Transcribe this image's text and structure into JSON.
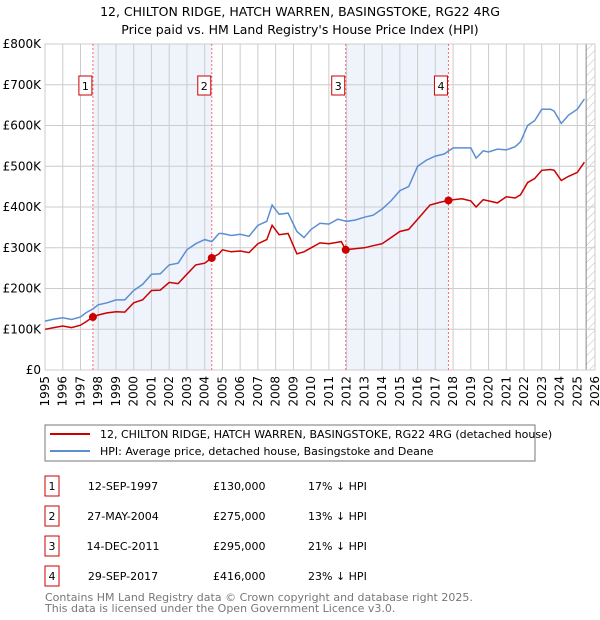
{
  "title": "12, CHILTON RIDGE, HATCH WARREN, BASINGSTOKE, RG22 4RG",
  "subtitle": "Price paid vs. HM Land Registry's House Price Index (HPI)",
  "colors": {
    "price": "#cc0000",
    "hpi": "#5b8fd1",
    "band": "#eef3fc",
    "grid": "#cccccc",
    "marker_line": "#ff6666"
  },
  "chart_data": {
    "type": "line",
    "xlim": [
      1995,
      2026
    ],
    "ylim": [
      0,
      800000
    ],
    "grid": true,
    "yticks": [
      {
        "v": 0,
        "label": "£0"
      },
      {
        "v": 100000,
        "label": "£100K"
      },
      {
        "v": 200000,
        "label": "£200K"
      },
      {
        "v": 300000,
        "label": "£300K"
      },
      {
        "v": 400000,
        "label": "£400K"
      },
      {
        "v": 500000,
        "label": "£500K"
      },
      {
        "v": 600000,
        "label": "£600K"
      },
      {
        "v": 700000,
        "label": "£700K"
      },
      {
        "v": 800000,
        "label": "£800K"
      }
    ],
    "xticks": [
      "1995",
      "1996",
      "1997",
      "1998",
      "1999",
      "2000",
      "2001",
      "2002",
      "2003",
      "2004",
      "2005",
      "2006",
      "2007",
      "2008",
      "2009",
      "2010",
      "2011",
      "2012",
      "2013",
      "2014",
      "2015",
      "2016",
      "2017",
      "2018",
      "2019",
      "2020",
      "2021",
      "2022",
      "2023",
      "2024",
      "2025",
      "2026"
    ],
    "shaded_ranges": [
      [
        1997.7,
        2004.4
      ],
      [
        2011.95,
        2017.74
      ]
    ],
    "forecast_from": 2025.5,
    "series": [
      {
        "name": "12, CHILTON RIDGE, HATCH WARREN, BASINGSTOKE, RG22 4RG (detached house)",
        "key": "price",
        "x": [
          1995,
          1995.5,
          1996,
          1996.5,
          1997,
          1997.3,
          1997.7,
          1998,
          1998.5,
          1999,
          1999.5,
          2000,
          2000.5,
          2001,
          2001.5,
          2002,
          2002.5,
          2003,
          2003.5,
          2004,
          2004.4,
          2004.8,
          2005,
          2005.5,
          2006,
          2006.5,
          2007,
          2007.5,
          2007.8,
          2008.2,
          2008.7,
          2009.2,
          2009.6,
          2010,
          2010.5,
          2011,
          2011.7,
          2011.95,
          2012.5,
          2013,
          2013.5,
          2014,
          2014.5,
          2015,
          2015.5,
          2016,
          2016.7,
          2017.3,
          2017.74,
          2018,
          2018.5,
          2019,
          2019.3,
          2019.7,
          2020,
          2020.5,
          2021,
          2021.5,
          2021.8,
          2022.2,
          2022.6,
          2023,
          2023.5,
          2023.7,
          2024.1,
          2024.5,
          2025,
          2025.4
        ],
        "y": [
          100000,
          104000,
          108000,
          104000,
          110000,
          118000,
          130000,
          135000,
          140000,
          143000,
          142000,
          165000,
          172000,
          195000,
          196000,
          215000,
          212000,
          235000,
          258000,
          262000,
          275000,
          285000,
          295000,
          290000,
          292000,
          288000,
          310000,
          320000,
          355000,
          332000,
          335000,
          285000,
          290000,
          300000,
          312000,
          310000,
          315000,
          295000,
          298000,
          300000,
          305000,
          310000,
          325000,
          340000,
          345000,
          370000,
          405000,
          412000,
          416000,
          418000,
          420000,
          415000,
          400000,
          418000,
          415000,
          410000,
          425000,
          422000,
          430000,
          460000,
          470000,
          490000,
          492000,
          490000,
          465000,
          475000,
          485000,
          510000
        ]
      },
      {
        "name": "HPI: Average price, detached house, Basingstoke and Deane",
        "key": "hpi",
        "x": [
          1995,
          1995.5,
          1996,
          1996.5,
          1997,
          1997.3,
          1997.7,
          1998,
          1998.5,
          1999,
          1999.5,
          2000,
          2000.5,
          2001,
          2001.5,
          2002,
          2002.5,
          2003,
          2003.5,
          2004,
          2004.4,
          2004.8,
          2005,
          2005.5,
          2006,
          2006.5,
          2007,
          2007.5,
          2007.8,
          2008.2,
          2008.7,
          2009.2,
          2009.6,
          2010,
          2010.5,
          2011,
          2011.5,
          2012,
          2012.5,
          2013,
          2013.5,
          2014,
          2014.5,
          2015,
          2015.5,
          2016,
          2016.5,
          2017,
          2017.5,
          2018,
          2018.5,
          2019,
          2019.3,
          2019.7,
          2020,
          2020.5,
          2021,
          2021.5,
          2021.8,
          2022.2,
          2022.6,
          2023,
          2023.5,
          2023.7,
          2024.1,
          2024.5,
          2025,
          2025.4
        ],
        "y": [
          120000,
          125000,
          128000,
          124000,
          130000,
          140000,
          150000,
          160000,
          165000,
          172000,
          172000,
          195000,
          210000,
          235000,
          236000,
          258000,
          262000,
          295000,
          310000,
          320000,
          315000,
          335000,
          335000,
          330000,
          333000,
          328000,
          355000,
          365000,
          405000,
          382000,
          385000,
          340000,
          325000,
          345000,
          360000,
          358000,
          370000,
          365000,
          368000,
          375000,
          380000,
          395000,
          415000,
          440000,
          450000,
          500000,
          515000,
          525000,
          530000,
          545000,
          545000,
          545000,
          520000,
          538000,
          535000,
          542000,
          540000,
          548000,
          560000,
          600000,
          612000,
          640000,
          640000,
          635000,
          605000,
          625000,
          640000,
          665000
        ]
      }
    ],
    "sales": [
      {
        "num": "1",
        "x": 1997.7,
        "y": 130000
      },
      {
        "num": "2",
        "x": 2004.4,
        "y": 275000
      },
      {
        "num": "3",
        "x": 2011.95,
        "y": 295000
      },
      {
        "num": "4",
        "x": 2017.74,
        "y": 416000
      }
    ]
  },
  "legend": [
    {
      "label": "12, CHILTON RIDGE, HATCH WARREN, BASINGSTOKE, RG22 4RG (detached house)"
    },
    {
      "label": "HPI: Average price, detached house, Basingstoke and Deane"
    }
  ],
  "table": [
    {
      "num": "1",
      "date": "12-SEP-1997",
      "price": "£130,000",
      "hpi": "17% ↓ HPI"
    },
    {
      "num": "2",
      "date": "27-MAY-2004",
      "price": "£275,000",
      "hpi": "13% ↓ HPI"
    },
    {
      "num": "3",
      "date": "14-DEC-2011",
      "price": "£295,000",
      "hpi": "21% ↓ HPI"
    },
    {
      "num": "4",
      "date": "29-SEP-2017",
      "price": "£416,000",
      "hpi": "23% ↓ HPI"
    }
  ],
  "footer": [
    "Contains HM Land Registry data © Crown copyright and database right 2025.",
    "This data is licensed under the Open Government Licence v3.0."
  ]
}
